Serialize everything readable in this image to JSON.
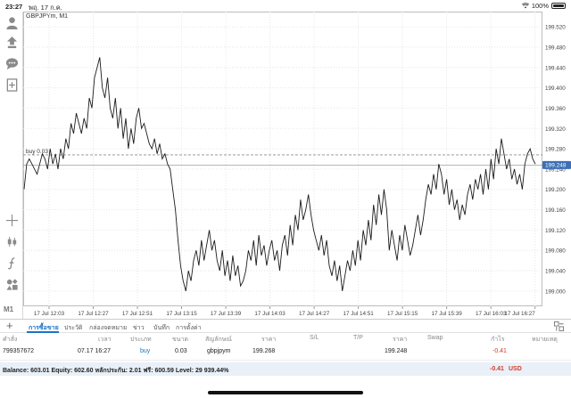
{
  "status_bar": {
    "time": "23:27",
    "date": "พฤ. 17 ก.ค.",
    "battery": "100%"
  },
  "toolbar": {
    "icons": [
      "account-icon",
      "order-icon",
      "chat-icon",
      "new-order-icon",
      "crosshair-icon",
      "candle-type-icon",
      "indicators-icon",
      "objects-icon"
    ],
    "timeframe": "M1"
  },
  "chart": {
    "symbol_title": "GBPJPYm, M1",
    "order_line_label": "buy 0.03"
  },
  "chart_data": {
    "type": "line",
    "title": "GBPJPYm, M1",
    "x_ticks": [
      "17 Jul 12:03",
      "17 Jul 12:27",
      "17 Jul 12:51",
      "17 Jul 13:15",
      "17 Jul 13:39",
      "17 Jul 14:03",
      "17 Jul 14:27",
      "17 Jul 14:51",
      "17 Jul 15:15",
      "17 Jul 15:39",
      "17 Jul 16:03",
      "17 Jul 16:27"
    ],
    "y_ticks": [
      "199.520",
      "199.480",
      "199.440",
      "199.400",
      "199.360",
      "199.320",
      "199.280",
      "199.240",
      "199.200",
      "199.160",
      "199.120",
      "199.080",
      "199.040",
      "199.000"
    ],
    "ylim": [
      198.97,
      199.55
    ],
    "current_price": "199.248",
    "order_price": 199.268,
    "colors": {
      "line": "#1c1c1c",
      "current_price_bg": "#3b6fb6",
      "grid": "#e6e6e6"
    },
    "values": [
      199.2,
      199.25,
      199.26,
      199.25,
      199.24,
      199.23,
      199.25,
      199.27,
      199.26,
      199.24,
      199.28,
      199.25,
      199.27,
      199.24,
      199.28,
      199.26,
      199.3,
      199.28,
      199.33,
      199.31,
      199.35,
      199.33,
      199.31,
      199.34,
      199.32,
      199.38,
      199.36,
      199.42,
      199.44,
      199.46,
      199.4,
      199.38,
      199.42,
      199.36,
      199.34,
      199.38,
      199.32,
      199.36,
      199.3,
      199.34,
      199.28,
      199.32,
      199.29,
      199.34,
      199.36,
      199.32,
      199.33,
      199.31,
      199.29,
      199.28,
      199.3,
      199.27,
      199.29,
      199.26,
      199.27,
      199.25,
      199.24,
      199.2,
      199.16,
      199.1,
      199.05,
      199.02,
      199.0,
      199.04,
      199.02,
      199.06,
      199.08,
      199.05,
      199.1,
      199.06,
      199.09,
      199.12,
      199.08,
      199.1,
      199.06,
      199.04,
      199.08,
      199.03,
      199.06,
      199.02,
      199.07,
      199.03,
      199.05,
      199.01,
      199.02,
      199.04,
      199.08,
      199.06,
      199.1,
      199.05,
      199.11,
      199.07,
      199.09,
      199.05,
      199.08,
      199.1,
      199.06,
      199.08,
      199.04,
      199.09,
      199.11,
      199.07,
      199.13,
      199.09,
      199.15,
      199.12,
      199.18,
      199.14,
      199.16,
      199.19,
      199.15,
      199.12,
      199.1,
      199.08,
      199.11,
      199.07,
      199.1,
      199.05,
      199.03,
      199.06,
      199.02,
      199.05,
      199.0,
      199.03,
      199.06,
      199.04,
      199.08,
      199.05,
      199.1,
      199.06,
      199.12,
      199.09,
      199.14,
      199.1,
      199.17,
      199.13,
      199.19,
      199.15,
      199.2,
      199.16,
      199.08,
      199.12,
      199.09,
      199.06,
      199.11,
      199.08,
      199.13,
      199.1,
      199.07,
      199.09,
      199.12,
      199.15,
      199.11,
      199.14,
      199.18,
      199.21,
      199.19,
      199.23,
      199.2,
      199.25,
      199.23,
      199.19,
      199.22,
      199.17,
      199.2,
      199.16,
      199.18,
      199.14,
      199.17,
      199.15,
      199.19,
      199.21,
      199.18,
      199.22,
      199.2,
      199.23,
      199.19,
      199.24,
      199.2,
      199.26,
      199.22,
      199.28,
      199.25,
      199.3,
      199.27,
      199.24,
      199.26,
      199.22,
      199.24,
      199.21,
      199.23,
      199.2,
      199.25,
      199.27,
      199.28,
      199.26,
      199.25
    ]
  },
  "bottom_panel": {
    "tabs": [
      "การซื้อขาย",
      "ประวัติ",
      "กล่องจดหมาย",
      "ข่าว",
      "บันทึก",
      "การตั้งค่า"
    ],
    "columns": [
      "คำสั่ง",
      "เวลา",
      "ประเภท",
      "ขนาด",
      "สัญลักษณ์",
      "ราคา",
      "S/L",
      "T/P",
      "ราคา",
      "Swap",
      "กำไร",
      "หมายเหตุ"
    ],
    "order": {
      "id": "799357672",
      "time": "07.17 16:27",
      "type": "buy",
      "size": "0.03",
      "symbol": "gbpjpym",
      "open_price": "199.268",
      "sl": "",
      "tp": "",
      "current_price": "199.248",
      "swap": "",
      "profit": "-0.41",
      "comment": ""
    },
    "balance_text": "Balance: 603.01 Equity: 602.60 หลักประกัน: 2.01 ฟรี: 600.59 Level: 29 939.44%",
    "total_profit": "-0.41",
    "currency": "USD"
  }
}
